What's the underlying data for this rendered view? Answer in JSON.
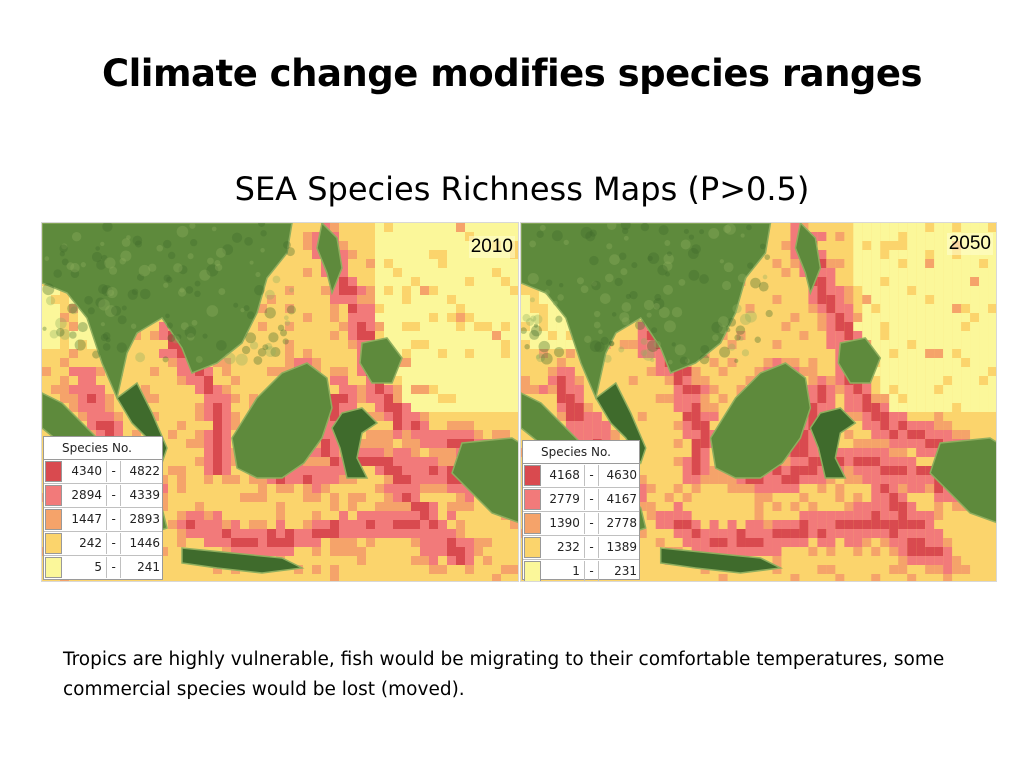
{
  "slide": {
    "title": "Climate change modifies species ranges",
    "subtitle": "SEA Species Richness Maps (P>0.5)",
    "caption": "Tropics are highly vulnerable, fish would be migrating to their comfortable temperatures, some commercial species would be lost (moved)."
  },
  "colors": {
    "class1": "#d94a4f",
    "class2": "#f27a7a",
    "class3": "#f5a36a",
    "class4": "#fbd46c",
    "class5": "#fbf79a",
    "land": "#5e8a3c",
    "land_dark": "#3f6b2c",
    "land_light": "#8fae5e"
  },
  "maps": [
    {
      "year": "2010",
      "legend": {
        "title": "Species No.",
        "rows": [
          {
            "low": "4340",
            "sep": "-",
            "high": "4822"
          },
          {
            "low": "2894",
            "sep": "-",
            "high": "4339"
          },
          {
            "low": "1447",
            "sep": "-",
            "high": "2893"
          },
          {
            "low": "242",
            "sep": "-",
            "high": "1446"
          },
          {
            "low": "5",
            "sep": "-",
            "high": "241"
          }
        ]
      }
    },
    {
      "year": "2050",
      "legend": {
        "title": "Species No.",
        "rows": [
          {
            "low": "4168",
            "sep": "-",
            "high": "4630"
          },
          {
            "low": "2779",
            "sep": "-",
            "high": "4167"
          },
          {
            "low": "1390",
            "sep": "-",
            "high": "2778"
          },
          {
            "low": "232",
            "sep": "-",
            "high": "1389"
          },
          {
            "low": "1",
            "sep": "-",
            "high": "231"
          }
        ]
      }
    }
  ]
}
